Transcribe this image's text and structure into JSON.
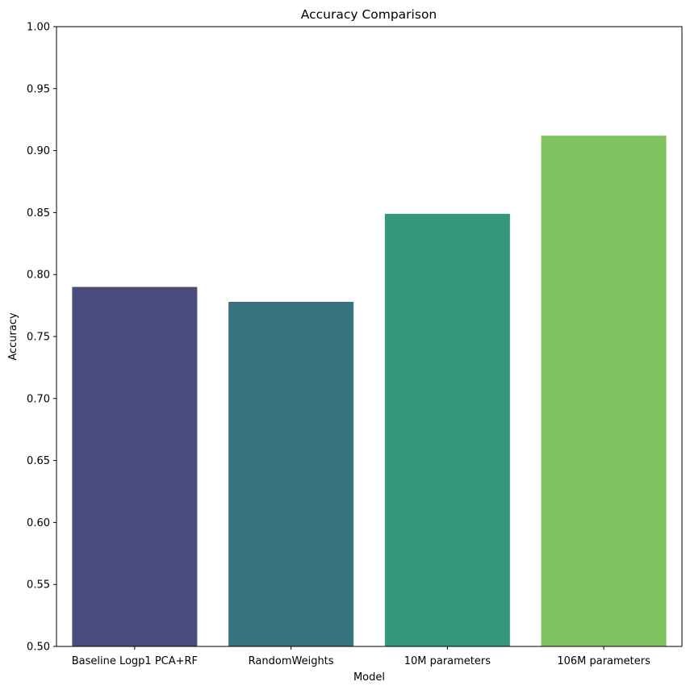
{
  "chart_data": {
    "type": "bar",
    "title": "Accuracy Comparison",
    "xlabel": "Model",
    "ylabel": "Accuracy",
    "categories": [
      "Baseline Logp1 PCA+RF",
      "RandomWeights",
      "10M parameters",
      "106M parameters"
    ],
    "values": [
      0.79,
      0.778,
      0.849,
      0.912
    ],
    "colors": [
      "#4a4c7e",
      "#367280",
      "#35977b",
      "#80c260"
    ],
    "ylim": [
      0.5,
      1.0
    ],
    "yticks": [
      "0.50",
      "0.55",
      "0.60",
      "0.65",
      "0.70",
      "0.75",
      "0.80",
      "0.85",
      "0.90",
      "0.95",
      "1.00"
    ],
    "grid": false,
    "legend": "none"
  }
}
